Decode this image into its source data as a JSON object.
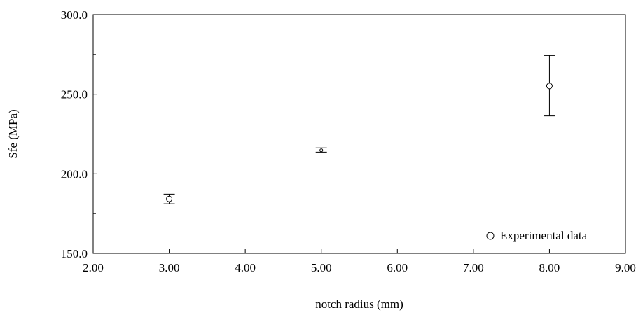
{
  "chart_data": {
    "type": "scatter",
    "title": "",
    "xlabel": "notch radius (mm)",
    "ylabel": "Sfe (MPa)",
    "xlim": [
      2.0,
      9.0
    ],
    "ylim": [
      150.0,
      300.0
    ],
    "x_ticks": [
      "2.00",
      "3.00",
      "4.00",
      "5.00",
      "6.00",
      "7.00",
      "8.00",
      "9.00"
    ],
    "y_ticks": [
      "150.0",
      "200.0",
      "250.0",
      "300.0"
    ],
    "grid": false,
    "legend_position": "bottom-right",
    "series": [
      {
        "name": "Experimental data",
        "marker": "open-circle",
        "points": [
          {
            "x": 3.0,
            "y": 184.2,
            "err_low": 181.2,
            "err_high": 187.2
          },
          {
            "x": 5.0,
            "y": 214.8,
            "err_low": 213.6,
            "err_high": 216.3
          },
          {
            "x": 8.0,
            "y": 255.2,
            "err_low": 236.4,
            "err_high": 274.3
          }
        ]
      }
    ]
  }
}
